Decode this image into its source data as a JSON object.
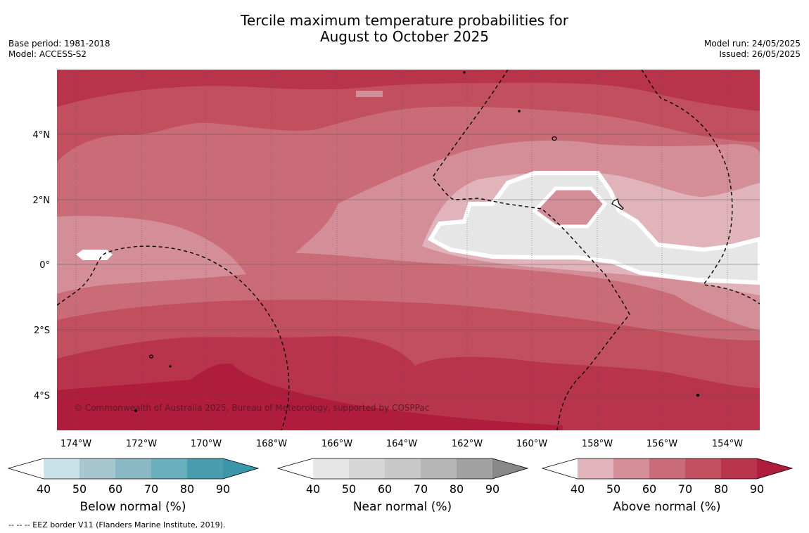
{
  "title": {
    "line1": "Tercile maximum temperature probabilities for",
    "line2": "August to October 2025"
  },
  "meta_left": {
    "base_period": "Base period: 1981-2018",
    "model": "Model: ACCESS-S2"
  },
  "meta_right": {
    "model_run": "Model run: 24/05/2025",
    "issued": "Issued: 26/05/2025"
  },
  "map": {
    "x_ticks": [
      "174°W",
      "172°W",
      "170°W",
      "168°W",
      "166°W",
      "164°W",
      "162°W",
      "160°W",
      "158°W",
      "156°W",
      "154°W"
    ],
    "y_ticks": [
      "4°N",
      "2°N",
      "0°",
      "2°S",
      "4°S"
    ],
    "copyright": "© Commonwealth of Australia 2025, Bureau of Meteorology, supported by COSPPac"
  },
  "colorbars": [
    {
      "title": "Below normal (%)",
      "ticks": [
        "40",
        "50",
        "60",
        "70",
        "80",
        "90"
      ],
      "colors": [
        "#ffffff",
        "#c8e2e8",
        "#a6c7cd",
        "#8ab8c4",
        "#6aafbe",
        "#4a9dae",
        "#3a96a8"
      ]
    },
    {
      "title": "Near normal (%)",
      "ticks": [
        "40",
        "50",
        "60",
        "70",
        "80",
        "90"
      ],
      "colors": [
        "#ffffff",
        "#e6e6e6",
        "#d6d6d6",
        "#c8c8c8",
        "#b6b6b6",
        "#a2a2a2",
        "#888888"
      ]
    },
    {
      "title": "Above normal (%)",
      "ticks": [
        "40",
        "50",
        "60",
        "70",
        "80",
        "90"
      ],
      "colors": [
        "#ffffff",
        "#e0b4ba",
        "#d48e97",
        "#c96c77",
        "#c24f5d",
        "#b8344a",
        "#b01d3c"
      ]
    }
  ],
  "eez_note": "--  --  -- EEZ border V11 (Flanders Marine Institute, 2019)."
}
